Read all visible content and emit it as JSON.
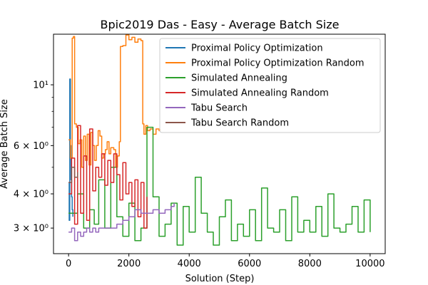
{
  "chart_data": {
    "type": "line",
    "title": "Bpic2019 Das - Easy - Average Batch Size",
    "xlabel": "Solution (Step)",
    "ylabel": "Average Batch Size",
    "xlim": [
      -500,
      10500
    ],
    "ylim": [
      2.42,
      15.3
    ],
    "yscale": "log",
    "xticks": [
      0,
      2000,
      4000,
      6000,
      8000,
      10000
    ],
    "xtick_labels": [
      "0",
      "2000",
      "4000",
      "6000",
      "8000",
      "10000"
    ],
    "yticks": [
      3,
      4,
      6,
      10
    ],
    "ytick_labels": [
      "3 × 10⁰",
      "4 × 10⁰",
      "6 × 10⁰",
      "10¹"
    ],
    "legend_position": "top-right",
    "grid": false,
    "series": [
      {
        "name": "Proximal Policy Optimization",
        "color": "#1f77b4",
        "x": [
          0,
          20,
          40,
          60,
          80,
          100,
          120,
          140
        ],
        "y": [
          4.4,
          3.2,
          10.5,
          6.0,
          4.5,
          3.9,
          3.5,
          3.3
        ]
      },
      {
        "name": "Proximal Policy Optimization Random",
        "color": "#ff7f0e",
        "x": [
          0,
          60,
          120,
          160,
          200,
          260,
          320,
          380,
          440,
          500,
          560,
          620,
          680,
          740,
          800,
          860,
          920,
          980,
          1040,
          1100,
          1160,
          1220,
          1280,
          1340,
          1400,
          1500,
          1560,
          1620,
          1680,
          1720,
          1800,
          1900,
          2000,
          2100,
          2200,
          2300,
          2400,
          2460,
          2500,
          2560,
          2620,
          2700,
          2800,
          2900,
          3000,
          3040
        ],
        "y": [
          6.3,
          5.4,
          14.8,
          15.0,
          7.2,
          7.0,
          6.1,
          6.3,
          5.0,
          6.5,
          5.3,
          6.6,
          5.1,
          6.7,
          6.0,
          5.3,
          6.0,
          6.8,
          6.5,
          5.4,
          5.6,
          5.8,
          6.2,
          5.6,
          5.9,
          5.8,
          5.0,
          5.5,
          6.2,
          13.8,
          13.9,
          15.2,
          14.6,
          14.9,
          14.3,
          14.7,
          14.5,
          7.2,
          6.6,
          7.1,
          6.8,
          6.9,
          6.6,
          6.9,
          6.8,
          6.9
        ]
      },
      {
        "name": "Simulated Annealing",
        "color": "#2ca02c",
        "x": [
          0,
          300,
          500,
          700,
          850,
          1000,
          1200,
          1400,
          1600,
          1800,
          2000,
          2200,
          2400,
          2600,
          2800,
          3000,
          3200,
          3400,
          3600,
          3800,
          4000,
          4200,
          4400,
          4600,
          4800,
          5000,
          5200,
          5400,
          5600,
          5800,
          6000,
          6200,
          6400,
          6600,
          6800,
          7000,
          7200,
          7400,
          7600,
          7800,
          8000,
          8200,
          8400,
          8600,
          8800,
          9000,
          9200,
          9400,
          9600,
          9800,
          10000
        ],
        "y": [
          3.4,
          4.0,
          3.0,
          3.5,
          3.1,
          4.5,
          3.0,
          5.0,
          3.3,
          2.8,
          3.7,
          2.7,
          3.0,
          7.0,
          3.9,
          2.8,
          3.1,
          3.7,
          2.6,
          3.6,
          2.9,
          4.6,
          3.4,
          2.9,
          2.6,
          3.3,
          3.8,
          2.7,
          3.1,
          2.8,
          3.5,
          2.7,
          4.2,
          3.0,
          2.9,
          3.5,
          2.7,
          3.9,
          2.9,
          3.2,
          2.9,
          3.6,
          2.8,
          4.0,
          3.0,
          2.9,
          3.1,
          3.6,
          2.9,
          3.8,
          2.9
        ]
      },
      {
        "name": "Simulated Annealing Random",
        "color": "#d62728",
        "x": [
          0,
          100,
          200,
          300,
          400,
          500,
          600,
          700,
          800,
          900,
          1000,
          1100,
          1200,
          1300,
          1400,
          1500,
          1600,
          1700,
          1800,
          1900,
          2000,
          2100,
          2200,
          2300,
          2400,
          2500,
          2600
        ],
        "y": [
          4.0,
          5.4,
          3.1,
          7.1,
          3.4,
          5.5,
          3.2,
          6.9,
          4.1,
          5.0,
          4.6,
          5.6,
          4.3,
          5.3,
          4.4,
          5.6,
          4.7,
          3.8,
          5.2,
          4.0,
          4.4,
          3.6,
          4.5,
          3.3,
          4.4,
          3.0,
          3.9
        ]
      },
      {
        "name": "Tabu Search",
        "color": "#9467bd",
        "x": [
          0,
          100,
          200,
          300,
          400,
          500,
          600,
          700,
          800,
          900,
          1000,
          1200,
          1400,
          1600,
          1800,
          2000,
          2200,
          2400,
          2600,
          2800,
          3000,
          3200,
          3400,
          3500
        ],
        "y": [
          2.9,
          3.0,
          2.7,
          2.9,
          2.8,
          2.9,
          3.0,
          2.9,
          3.0,
          2.9,
          3.0,
          3.0,
          3.0,
          3.1,
          3.2,
          3.3,
          3.5,
          3.4,
          3.4,
          3.5,
          3.4,
          3.5,
          3.6,
          3.7
        ]
      },
      {
        "name": "Tabu Search Random",
        "color": "#8c564b",
        "x": [
          0,
          100,
          200,
          300
        ],
        "y": [
          4.4,
          5.0,
          4.6,
          4.8
        ]
      }
    ]
  }
}
